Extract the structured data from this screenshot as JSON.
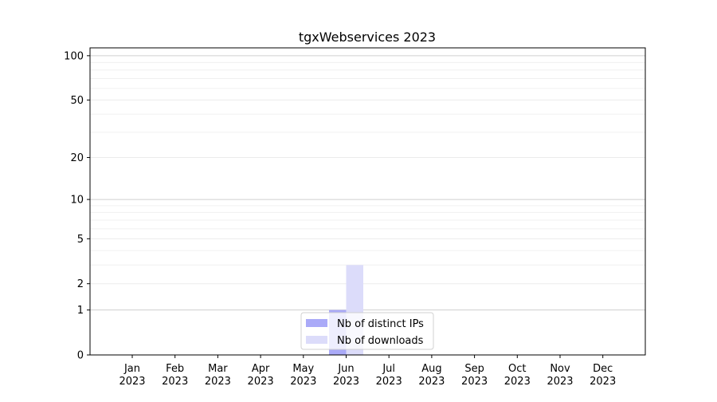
{
  "chart_data": {
    "type": "bar",
    "title": "tgxWebservices 2023",
    "xlabel": "",
    "ylabel": "",
    "categories": [
      "Jan\n2023",
      "Feb\n2023",
      "Mar\n2023",
      "Apr\n2023",
      "May\n2023",
      "Jun\n2023",
      "Jul\n2023",
      "Aug\n2023",
      "Sep\n2023",
      "Oct\n2023",
      "Nov\n2023",
      "Dec\n2023"
    ],
    "series": [
      {
        "name": "Nb of distinct IPs",
        "color": "#aaaaf8",
        "values": [
          0,
          0,
          0,
          0,
          0,
          1,
          0,
          0,
          0,
          0,
          0,
          0
        ]
      },
      {
        "name": "Nb of downloads",
        "color": "#dcdcfa",
        "values": [
          0,
          0,
          0,
          0,
          0,
          3,
          0,
          0,
          0,
          0,
          0,
          0
        ]
      }
    ],
    "yscale": "log(1+y)",
    "ylim": [
      0,
      113
    ],
    "yticks": [
      0,
      1,
      2,
      5,
      10,
      20,
      50,
      100
    ],
    "grid": true,
    "legend": "bottom-center"
  }
}
